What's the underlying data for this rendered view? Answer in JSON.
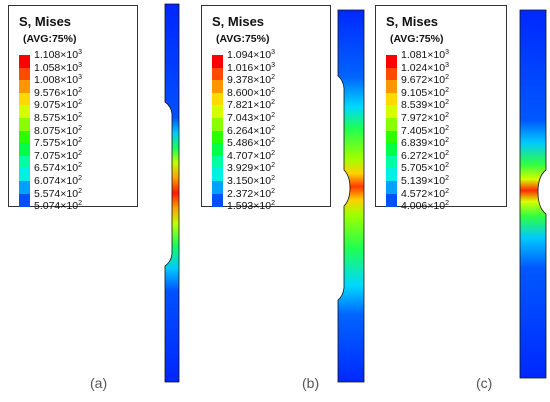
{
  "colors": [
    "#ff0000",
    "#ff4a00",
    "#ff9500",
    "#ffd900",
    "#d4ff00",
    "#8aff00",
    "#2bff00",
    "#00ff49",
    "#00ffa3",
    "#00f0e6",
    "#00a0ff",
    "#0050ff",
    "#0000ff"
  ],
  "panels": [
    {
      "id": "a",
      "caption": "(a)",
      "legend": {
        "title": "S, Mises",
        "subtitle": "(AVG:75%)",
        "values": [
          {
            "mant": "1.108×10",
            "exp": "3"
          },
          {
            "mant": "1.058×10",
            "exp": "3"
          },
          {
            "mant": "1.008×10",
            "exp": "3"
          },
          {
            "mant": "9.576×10",
            "exp": "2"
          },
          {
            "mant": "9.075×10",
            "exp": "2"
          },
          {
            "mant": "8.575×10",
            "exp": "2"
          },
          {
            "mant": "8.075×10",
            "exp": "2"
          },
          {
            "mant": "7.575×10",
            "exp": "2"
          },
          {
            "mant": "7.075×10",
            "exp": "2"
          },
          {
            "mant": "6.574×10",
            "exp": "2"
          },
          {
            "mant": "6.074×10",
            "exp": "2"
          },
          {
            "mant": "5.574×10",
            "exp": "2"
          },
          {
            "mant": "5.074×10",
            "exp": "2"
          }
        ]
      }
    },
    {
      "id": "b",
      "caption": "(b)",
      "legend": {
        "title": "S, Mises",
        "subtitle": "(AVG:75%)",
        "values": [
          {
            "mant": "1.094×10",
            "exp": "3"
          },
          {
            "mant": "1.016×10",
            "exp": "3"
          },
          {
            "mant": "9.378×10",
            "exp": "2"
          },
          {
            "mant": "8.600×10",
            "exp": "2"
          },
          {
            "mant": "7.821×10",
            "exp": "2"
          },
          {
            "mant": "7.043×10",
            "exp": "2"
          },
          {
            "mant": "6.264×10",
            "exp": "2"
          },
          {
            "mant": "5.486×10",
            "exp": "2"
          },
          {
            "mant": "4.707×10",
            "exp": "2"
          },
          {
            "mant": "3.929×10",
            "exp": "2"
          },
          {
            "mant": "3.150×10",
            "exp": "2"
          },
          {
            "mant": "2.372×10",
            "exp": "2"
          },
          {
            "mant": "1.593×10",
            "exp": "2"
          }
        ]
      }
    },
    {
      "id": "c",
      "caption": "(c)",
      "legend": {
        "title": "S, Mises",
        "subtitle": "(AVG:75%)",
        "values": [
          {
            "mant": "1.081×10",
            "exp": "3"
          },
          {
            "mant": "1.024×10",
            "exp": "3"
          },
          {
            "mant": "9.672×10",
            "exp": "2"
          },
          {
            "mant": "9.105×10",
            "exp": "2"
          },
          {
            "mant": "8.539×10",
            "exp": "2"
          },
          {
            "mant": "7.972×10",
            "exp": "2"
          },
          {
            "mant": "7.405×10",
            "exp": "2"
          },
          {
            "mant": "6.839×10",
            "exp": "2"
          },
          {
            "mant": "6.272×10",
            "exp": "2"
          },
          {
            "mant": "5.705×10",
            "exp": "2"
          },
          {
            "mant": "5.139×10",
            "exp": "2"
          },
          {
            "mant": "4.572×10",
            "exp": "2"
          },
          {
            "mant": "4.006×10",
            "exp": "2"
          }
        ]
      }
    }
  ]
}
